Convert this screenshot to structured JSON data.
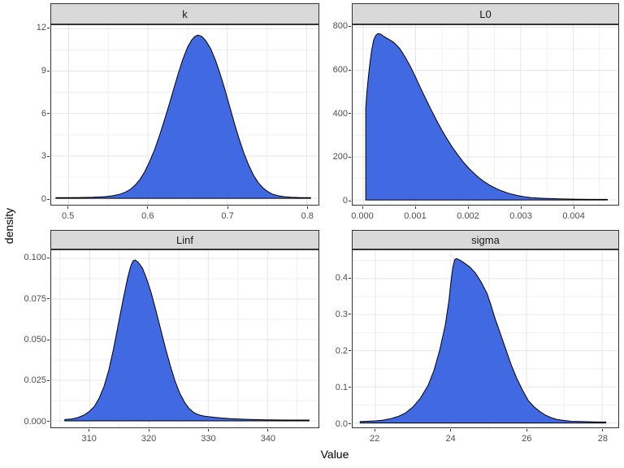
{
  "chart_data": {
    "type": "area",
    "subtype": "density",
    "title": "",
    "xlabel": "Value",
    "ylabel": "density",
    "facet_layout": "2x2 grid, free x and y scales",
    "style": {
      "fill_color": "#4169e1",
      "line_color": "#000000",
      "strip_bg": "#d9d9d9",
      "panel_border": "#333333",
      "grid_major": "#e5e5e5",
      "grid_minor": "#f0f0f0",
      "tick_label_color": "#4d4d4d"
    },
    "facets": [
      {
        "title": "k",
        "xlim": [
          0.478,
          0.815
        ],
        "ylim": [
          -0.45,
          12.25
        ],
        "x_tick_values": [
          0.5,
          0.6,
          0.7,
          0.8
        ],
        "x_tick_labels": [
          "0.5",
          "0.6",
          "0.7",
          "0.8"
        ],
        "x_minor_values": [
          0.55,
          0.65,
          0.75
        ],
        "y_tick_values": [
          0,
          3,
          6,
          9,
          12
        ],
        "y_tick_labels": [
          "0",
          "3",
          "6",
          "9",
          "12"
        ],
        "y_minor_values": [
          1.5,
          4.5,
          7.5,
          10.5
        ],
        "curve": [
          [
            0.484,
            0.05
          ],
          [
            0.5,
            0.05
          ],
          [
            0.515,
            0.06
          ],
          [
            0.53,
            0.08
          ],
          [
            0.545,
            0.12
          ],
          [
            0.555,
            0.18
          ],
          [
            0.565,
            0.3
          ],
          [
            0.572,
            0.45
          ],
          [
            0.578,
            0.65
          ],
          [
            0.584,
            0.95
          ],
          [
            0.59,
            1.35
          ],
          [
            0.596,
            1.9
          ],
          [
            0.602,
            2.6
          ],
          [
            0.608,
            3.4
          ],
          [
            0.614,
            4.35
          ],
          [
            0.62,
            5.4
          ],
          [
            0.626,
            6.5
          ],
          [
            0.632,
            7.65
          ],
          [
            0.638,
            8.8
          ],
          [
            0.644,
            9.85
          ],
          [
            0.65,
            10.7
          ],
          [
            0.655,
            11.2
          ],
          [
            0.659,
            11.45
          ],
          [
            0.663,
            11.55
          ],
          [
            0.668,
            11.45
          ],
          [
            0.673,
            11.15
          ],
          [
            0.679,
            10.6
          ],
          [
            0.685,
            9.8
          ],
          [
            0.691,
            8.8
          ],
          [
            0.697,
            7.7
          ],
          [
            0.703,
            6.5
          ],
          [
            0.709,
            5.3
          ],
          [
            0.715,
            4.2
          ],
          [
            0.721,
            3.2
          ],
          [
            0.727,
            2.35
          ],
          [
            0.733,
            1.65
          ],
          [
            0.739,
            1.12
          ],
          [
            0.745,
            0.74
          ],
          [
            0.751,
            0.48
          ],
          [
            0.757,
            0.3
          ],
          [
            0.764,
            0.19
          ],
          [
            0.772,
            0.12
          ],
          [
            0.78,
            0.08
          ],
          [
            0.79,
            0.06
          ],
          [
            0.805,
            0.05
          ]
        ]
      },
      {
        "title": "L0",
        "xlim": [
          -0.0002,
          0.00486
        ],
        "ylim": [
          -22,
          809
        ],
        "x_tick_values": [
          0,
          0.001,
          0.002,
          0.003,
          0.004
        ],
        "x_tick_labels": [
          "0.000",
          "0.001",
          "0.002",
          "0.003",
          "0.004"
        ],
        "x_minor_values": [
          0.0005,
          0.0015,
          0.0025,
          0.0035,
          0.0045
        ],
        "y_tick_values": [
          0,
          200,
          400,
          600,
          800
        ],
        "y_tick_labels": [
          "0",
          "200",
          "400",
          "600",
          "800"
        ],
        "y_minor_values": [
          100,
          300,
          500,
          700
        ],
        "curve": [
          [
            5e-05,
            425
          ],
          [
            7e-05,
            495
          ],
          [
            0.0001,
            570
          ],
          [
            0.00013,
            635
          ],
          [
            0.00016,
            690
          ],
          [
            0.0002,
            740
          ],
          [
            0.00024,
            762
          ],
          [
            0.00028,
            770
          ],
          [
            0.00033,
            768
          ],
          [
            0.0004,
            756
          ],
          [
            0.0005,
            742
          ],
          [
            0.00055,
            735
          ],
          [
            0.0006,
            726
          ],
          [
            0.0007,
            700
          ],
          [
            0.0008,
            662
          ],
          [
            0.0009,
            618
          ],
          [
            0.001,
            568
          ],
          [
            0.0011,
            515
          ],
          [
            0.0012,
            465
          ],
          [
            0.0013,
            415
          ],
          [
            0.0014,
            368
          ],
          [
            0.0015,
            323
          ],
          [
            0.0016,
            282
          ],
          [
            0.0017,
            244
          ],
          [
            0.0018,
            210
          ],
          [
            0.0019,
            178
          ],
          [
            0.002,
            150
          ],
          [
            0.0021,
            126
          ],
          [
            0.0022,
            104
          ],
          [
            0.0023,
            86
          ],
          [
            0.0024,
            70
          ],
          [
            0.0025,
            57
          ],
          [
            0.0026,
            46
          ],
          [
            0.0027,
            37
          ],
          [
            0.0028,
            29
          ],
          [
            0.0029,
            23
          ],
          [
            0.003,
            18
          ],
          [
            0.0031,
            14
          ],
          [
            0.0032,
            11
          ],
          [
            0.0034,
            8
          ],
          [
            0.0036,
            6
          ],
          [
            0.0038,
            5
          ],
          [
            0.004,
            4
          ],
          [
            0.0043,
            3
          ],
          [
            0.00465,
            3
          ]
        ]
      },
      {
        "title": "Linf",
        "xlim": [
          303.5,
          348.6
        ],
        "ylim": [
          -0.004,
          0.105
        ],
        "x_tick_values": [
          310,
          320,
          330,
          340
        ],
        "x_tick_labels": [
          "310",
          "320",
          "330",
          "340"
        ],
        "x_minor_values": [
          305,
          315,
          325,
          335,
          345
        ],
        "y_tick_values": [
          0,
          0.025,
          0.05,
          0.075,
          0.1
        ],
        "y_tick_labels": [
          "0.000",
          "0.025",
          "0.050",
          "0.075",
          "0.100"
        ],
        "y_minor_values": [
          0.0125,
          0.0375,
          0.0625,
          0.0875
        ],
        "curve": [
          [
            305.8,
            0.0008
          ],
          [
            307,
            0.0012
          ],
          [
            308,
            0.002
          ],
          [
            309,
            0.0035
          ],
          [
            310,
            0.006
          ],
          [
            310.8,
            0.009
          ],
          [
            311.6,
            0.014
          ],
          [
            312.4,
            0.021
          ],
          [
            313.2,
            0.031
          ],
          [
            314,
            0.044
          ],
          [
            314.8,
            0.059
          ],
          [
            315.6,
            0.074
          ],
          [
            316.4,
            0.088
          ],
          [
            316.9,
            0.095
          ],
          [
            317.3,
            0.0985
          ],
          [
            317.7,
            0.099
          ],
          [
            318.2,
            0.0975
          ],
          [
            318.9,
            0.094
          ],
          [
            319.6,
            0.0875
          ],
          [
            320.4,
            0.0785
          ],
          [
            321.2,
            0.0675
          ],
          [
            322,
            0.056
          ],
          [
            322.8,
            0.0445
          ],
          [
            323.6,
            0.034
          ],
          [
            324.4,
            0.0245
          ],
          [
            325.2,
            0.017
          ],
          [
            326,
            0.0115
          ],
          [
            326.8,
            0.0075
          ],
          [
            327.6,
            0.005
          ],
          [
            328.4,
            0.0037
          ],
          [
            329.2,
            0.003
          ],
          [
            330,
            0.0026
          ],
          [
            331,
            0.0022
          ],
          [
            332.5,
            0.0017
          ],
          [
            334,
            0.0013
          ],
          [
            336,
            0.001
          ],
          [
            339,
            0.0007
          ],
          [
            343,
            0.0005
          ],
          [
            347,
            0.0005
          ]
        ]
      },
      {
        "title": "sigma",
        "xlim": [
          21.4,
          28.43
        ],
        "ylim": [
          -0.012,
          0.478
        ],
        "x_tick_values": [
          22,
          24,
          26,
          28
        ],
        "x_tick_labels": [
          "22",
          "24",
          "26",
          "28"
        ],
        "x_minor_values": [
          23,
          25,
          27
        ],
        "y_tick_values": [
          0,
          0.1,
          0.2,
          0.3,
          0.4
        ],
        "y_tick_labels": [
          "0.0",
          "0.1",
          "0.2",
          "0.3",
          "0.4"
        ],
        "y_minor_values": [
          0.05,
          0.15,
          0.25,
          0.35,
          0.45
        ],
        "curve": [
          [
            21.6,
            0.004
          ],
          [
            22.0,
            0.006
          ],
          [
            22.2,
            0.008
          ],
          [
            22.4,
            0.012
          ],
          [
            22.6,
            0.018
          ],
          [
            22.8,
            0.028
          ],
          [
            23.0,
            0.045
          ],
          [
            23.2,
            0.07
          ],
          [
            23.4,
            0.105
          ],
          [
            23.55,
            0.145
          ],
          [
            23.7,
            0.2
          ],
          [
            23.85,
            0.27
          ],
          [
            23.95,
            0.34
          ],
          [
            24.0,
            0.39
          ],
          [
            24.05,
            0.43
          ],
          [
            24.1,
            0.452
          ],
          [
            24.15,
            0.455
          ],
          [
            24.25,
            0.45
          ],
          [
            24.35,
            0.443
          ],
          [
            24.5,
            0.432
          ],
          [
            24.65,
            0.415
          ],
          [
            24.8,
            0.39
          ],
          [
            24.95,
            0.36
          ],
          [
            25.05,
            0.33
          ],
          [
            25.15,
            0.295
          ],
          [
            25.3,
            0.25
          ],
          [
            25.45,
            0.205
          ],
          [
            25.6,
            0.16
          ],
          [
            25.75,
            0.122
          ],
          [
            25.9,
            0.09
          ],
          [
            26.05,
            0.062
          ],
          [
            26.2,
            0.045
          ],
          [
            26.35,
            0.032
          ],
          [
            26.5,
            0.022
          ],
          [
            26.65,
            0.015
          ],
          [
            26.8,
            0.01
          ],
          [
            27.0,
            0.007
          ],
          [
            27.2,
            0.005
          ],
          [
            27.5,
            0.004
          ],
          [
            27.9,
            0.003
          ],
          [
            28.1,
            0.003
          ]
        ]
      }
    ]
  }
}
